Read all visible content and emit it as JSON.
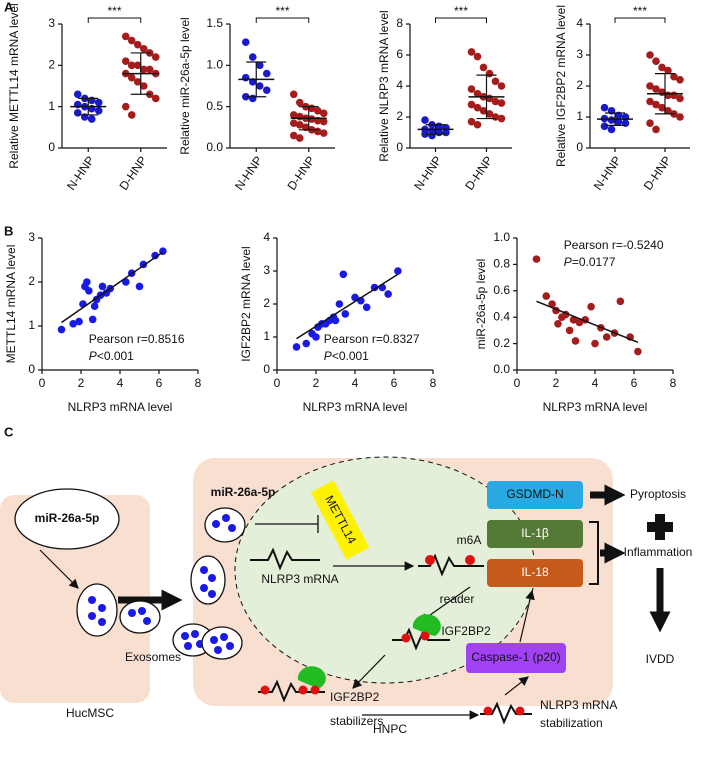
{
  "panel_labels": [
    "A",
    "B"
  ],
  "chart_data": [
    {
      "type": "dotplot",
      "ylabel": "Relative METTL14 mRNA level",
      "significance": "***",
      "categories": [
        "N-HNP",
        "D-HNP"
      ],
      "groups": [
        {
          "color": "#1a1ac8",
          "values": [
            1.3,
            1.2,
            1.15,
            1.1,
            1.05,
            1.0,
            0.95,
            0.9,
            0.85,
            0.75,
            0.7
          ],
          "mean": 1.0,
          "sd": 0.2
        },
        {
          "color": "#a51c1c",
          "values": [
            2.7,
            2.6,
            2.5,
            2.4,
            2.3,
            2.2,
            2.1,
            2.0,
            2.0,
            1.9,
            1.9,
            1.8,
            1.8,
            1.7,
            1.6,
            1.5,
            1.3,
            1.2,
            1.0,
            0.8
          ],
          "mean": 1.8,
          "sd": 0.5
        }
      ],
      "ylim": [
        0,
        3
      ],
      "yticks": [
        0,
        1,
        2,
        3
      ]
    },
    {
      "type": "dotplot",
      "ylabel": "Relative miR-26a-5p level",
      "significance": "***",
      "categories": [
        "N-HNP",
        "D-HNP"
      ],
      "groups": [
        {
          "color": "#1a1ac8",
          "values": [
            1.28,
            1.1,
            1.0,
            0.9,
            0.85,
            0.8,
            0.75,
            0.7,
            0.62,
            0.6
          ],
          "mean": 0.83,
          "sd": 0.21
        },
        {
          "color": "#a51c1c",
          "values": [
            0.65,
            0.55,
            0.5,
            0.48,
            0.45,
            0.42,
            0.4,
            0.38,
            0.36,
            0.35,
            0.33,
            0.32,
            0.3,
            0.28,
            0.25,
            0.22,
            0.2,
            0.18,
            0.15,
            0.12
          ],
          "mean": 0.36,
          "sd": 0.14
        }
      ],
      "ylim": [
        0,
        1.5
      ],
      "yticks": [
        {
          "value": 0,
          "label": "0.0"
        },
        0.5,
        {
          "value": 1,
          "label": "1.0"
        },
        1.5
      ]
    },
    {
      "type": "dotplot",
      "ylabel": "Relative NLRP3 mRNA level",
      "significance": "***",
      "categories": [
        "N-HNP",
        "D-HNP"
      ],
      "groups": [
        {
          "color": "#1a1ac8",
          "values": [
            1.8,
            1.5,
            1.4,
            1.3,
            1.2,
            1.1,
            1.0,
            1.0,
            0.9,
            0.8
          ],
          "mean": 1.2,
          "sd": 0.3
        },
        {
          "color": "#a51c1c",
          "values": [
            6.2,
            5.9,
            5.2,
            4.8,
            4.3,
            4.0,
            3.8,
            3.5,
            3.3,
            3.2,
            3.0,
            2.9,
            2.8,
            2.6,
            2.4,
            2.2,
            2.0,
            1.9,
            1.7,
            1.5
          ],
          "mean": 3.3,
          "sd": 1.4
        }
      ],
      "ylim": [
        0,
        8
      ],
      "yticks": [
        0,
        2,
        4,
        6,
        8
      ]
    },
    {
      "type": "dotplot",
      "ylabel": "Relative IGF2BP2 mRNA level",
      "significance": "***",
      "categories": [
        "N-HNP",
        "D-HNP"
      ],
      "groups": [
        {
          "color": "#1a1ac8",
          "values": [
            1.3,
            1.2,
            1.05,
            1.0,
            0.95,
            0.9,
            0.85,
            0.8,
            0.7,
            0.6
          ],
          "mean": 0.93,
          "sd": 0.2
        },
        {
          "color": "#a51c1c",
          "values": [
            3.0,
            2.8,
            2.6,
            2.5,
            2.3,
            2.2,
            2.0,
            1.9,
            1.8,
            1.7,
            1.7,
            1.6,
            1.5,
            1.4,
            1.3,
            1.2,
            1.1,
            1.0,
            0.8,
            0.6
          ],
          "mean": 1.75,
          "sd": 0.65
        }
      ],
      "ylim": [
        0,
        4
      ],
      "yticks": [
        0,
        1,
        2,
        3,
        4
      ]
    },
    {
      "type": "scatter",
      "xlabel": "NLRP3 mRNA level",
      "ylabel": "METTL14 mRNA level",
      "color": "#1a1ae6",
      "x": [
        1,
        1.6,
        1.9,
        2.1,
        2.2,
        2.3,
        2.4,
        2.6,
        2.7,
        2.8,
        3.0,
        3.1,
        3.3,
        3.5,
        4.3,
        4.6,
        5.0,
        5.2,
        5.8,
        6.2
      ],
      "y": [
        0.92,
        1.05,
        1.1,
        1.5,
        1.9,
        2.0,
        1.8,
        1.15,
        1.45,
        1.6,
        1.7,
        1.9,
        1.75,
        1.85,
        2.0,
        2.2,
        1.9,
        2.4,
        2.6,
        2.7
      ],
      "fit": {
        "x": [
          1,
          6.2
        ],
        "y": [
          1.08,
          2.68
        ]
      },
      "annotation": {
        "text": "Pearson r=0.8516",
        "p_symbol": "P",
        "p_value": "<0.001"
      },
      "annotation_corner": "bottom-right",
      "xlim": [
        0,
        8
      ],
      "xticks": [
        0,
        2,
        4,
        6,
        8
      ],
      "ylim": [
        0,
        3
      ],
      "yticks": [
        0,
        1,
        2,
        3
      ]
    },
    {
      "type": "scatter",
      "xlabel": "NLRP3 mRNA level",
      "ylabel": "IGF2BP2 mRNA level",
      "color": "#1a1ae6",
      "x": [
        1,
        1.5,
        1.8,
        2.0,
        2.1,
        2.3,
        2.5,
        2.7,
        2.9,
        3.0,
        3.2,
        3.4,
        3.5,
        4.0,
        4.3,
        4.6,
        5.0,
        5.4,
        5.7,
        6.2
      ],
      "y": [
        0.7,
        0.8,
        1.1,
        1.0,
        1.3,
        1.4,
        1.4,
        1.5,
        1.6,
        1.5,
        2.0,
        2.9,
        1.7,
        2.2,
        2.1,
        1.9,
        2.5,
        2.5,
        2.3,
        3.0
      ],
      "fit": {
        "x": [
          1,
          6.2
        ],
        "y": [
          0.95,
          2.9
        ]
      },
      "annotation": {
        "text": "Pearson r=0.8327",
        "p_symbol": "P",
        "p_value": "<0.001"
      },
      "annotation_corner": "bottom-right",
      "xlim": [
        0,
        8
      ],
      "xticks": [
        0,
        2,
        4,
        6,
        8
      ],
      "ylim": [
        0,
        4
      ],
      "yticks": [
        0,
        1,
        2,
        3,
        4
      ]
    },
    {
      "type": "scatter",
      "xlabel": "NLRP3 mRNA level",
      "ylabel": "miR-26a-5p level",
      "color": "#a51c1c",
      "x": [
        1,
        1.5,
        1.8,
        2.0,
        2.1,
        2.3,
        2.5,
        2.7,
        2.9,
        3.0,
        3.2,
        3.5,
        3.8,
        4.0,
        4.3,
        4.6,
        5.0,
        5.3,
        5.8,
        6.2
      ],
      "y": [
        0.84,
        0.56,
        0.5,
        0.45,
        0.35,
        0.4,
        0.42,
        0.3,
        0.38,
        0.22,
        0.36,
        0.38,
        0.48,
        0.2,
        0.32,
        0.25,
        0.28,
        0.52,
        0.25,
        0.14
      ],
      "fit": {
        "x": [
          1,
          6.2
        ],
        "y": [
          0.52,
          0.21
        ]
      },
      "annotation": {
        "text": "Pearson r=-0.5240",
        "p_symbol": "P",
        "p_value": "=0.0177"
      },
      "annotation_corner": "top-right",
      "xlim": [
        0,
        8
      ],
      "xticks": [
        0,
        2,
        4,
        6,
        8
      ],
      "ylim": [
        0,
        1
      ],
      "yticks": [
        {
          "value": 0,
          "label": "0.0"
        },
        0.2,
        0.4,
        0.6,
        0.8,
        {
          "value": 1,
          "label": "1.0"
        }
      ]
    }
  ],
  "diagram": {
    "label": "C",
    "hucmsc": {
      "mirna": "miR-26a-5p",
      "name": "HucMSC",
      "exosomes": "Exosomes"
    },
    "hnpc": {
      "name": "HNPC",
      "mirna": "miR-26a-5p",
      "mettl14": "METTL14",
      "mrna": "NLRP3 mRNA",
      "m6a": "m6A",
      "reader": "reader",
      "igf2bp2": "IGF2BP2",
      "stabilizer_protein": "IGF2BP2",
      "stabilizers": "stabilizers",
      "stabilized": [
        "NLRP3 mRNA",
        "stabilization"
      ]
    },
    "effectors": [
      "GSDMD-N",
      "IL-1β",
      "IL-18",
      "Caspase-1 (p20)"
    ],
    "outcomes": [
      "Pyroptosis",
      "Inflammation",
      "IVDD"
    ]
  }
}
